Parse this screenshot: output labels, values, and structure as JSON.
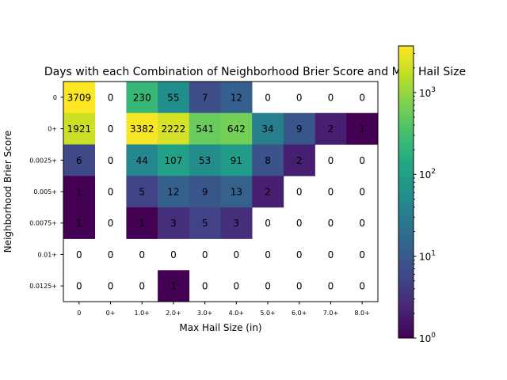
{
  "chart_data": {
    "type": "heatmap",
    "title": "Days with each Combination of Neighborhood Brier Score and Max Hail Size",
    "xlabel": "Max Hail Size (in)",
    "ylabel": "Neighborhood Brier Score",
    "x_categories": [
      "0",
      "0+",
      "1.0+",
      "2.0+",
      "3.0+",
      "4.0+",
      "5.0+",
      "6.0+",
      "7.0+",
      "8.0+"
    ],
    "y_categories": [
      "0",
      "0+",
      "0.0025+",
      "0.005+",
      "0.0075+",
      "0.01+",
      "0.0125+"
    ],
    "values": [
      [
        3709,
        0,
        230,
        55,
        7,
        12,
        0,
        0,
        0,
        0
      ],
      [
        1921,
        0,
        3382,
        2222,
        541,
        642,
        34,
        9,
        2,
        1
      ],
      [
        6,
        0,
        44,
        107,
        53,
        91,
        8,
        2,
        0,
        0
      ],
      [
        1,
        0,
        5,
        12,
        9,
        13,
        2,
        0,
        0,
        0
      ],
      [
        1,
        0,
        1,
        3,
        5,
        3,
        0,
        0,
        0,
        0
      ],
      [
        0,
        0,
        0,
        0,
        0,
        0,
        0,
        0,
        0,
        0
      ],
      [
        0,
        0,
        0,
        1,
        0,
        0,
        0,
        0,
        0,
        0
      ]
    ],
    "colorbar": {
      "scale": "log",
      "colormap": "viridis",
      "range": [
        1,
        3709
      ],
      "ticks": [
        1,
        10,
        100,
        1000
      ],
      "tick_base": "10",
      "tick_exponents": [
        "0",
        "1",
        "2",
        "3"
      ]
    },
    "zero_cells": "blank",
    "grid": false
  }
}
